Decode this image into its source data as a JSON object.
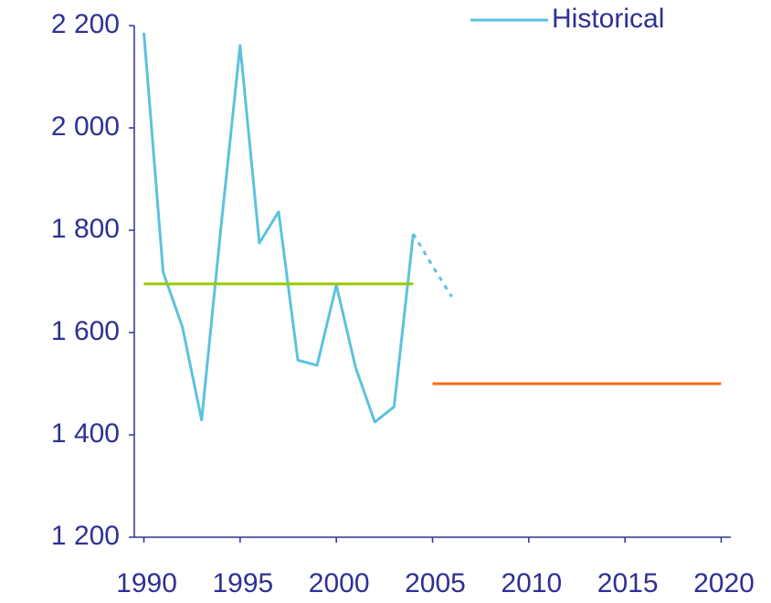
{
  "chart_data": {
    "type": "line",
    "series": [
      {
        "name": "Historical",
        "color": "#5bc3dc",
        "x": [
          1990,
          1991,
          1992,
          1993,
          1994,
          1995,
          1996,
          1997,
          1998,
          1999,
          2000,
          2001,
          2002,
          2003,
          2004
        ],
        "values": [
          2186,
          1718,
          1611,
          1429,
          1804,
          2161,
          1775,
          1836,
          1546,
          1536,
          1693,
          1532,
          1425,
          1455,
          1793
        ]
      },
      {
        "color": "#5bc3dc",
        "dashed": true,
        "x": [
          2004,
          2005,
          2006
        ],
        "values": [
          1793,
          1730,
          1670
        ]
      },
      {
        "color": "#99cc00",
        "x": [
          1990,
          2004
        ],
        "values": [
          1695,
          1695
        ]
      },
      {
        "color": "#ff6a13",
        "x": [
          2005,
          2020
        ],
        "values": [
          1500,
          1500
        ]
      }
    ],
    "xlim": [
      1989.5,
      2020.5
    ],
    "xticks": [
      1990,
      1995,
      2000,
      2005,
      2010,
      2015,
      2020
    ],
    "ylim": [
      1200,
      2200
    ],
    "yticks": [
      {
        "value": 1200,
        "label": "1 200"
      },
      {
        "value": 1400,
        "label": "1 400"
      },
      {
        "value": 1600,
        "label": "1 600"
      },
      {
        "value": 1800,
        "label": "1 800"
      },
      {
        "value": 2000,
        "label": "2 000"
      },
      {
        "value": 2200,
        "label": "2 200"
      }
    ],
    "legend": "top-right"
  }
}
